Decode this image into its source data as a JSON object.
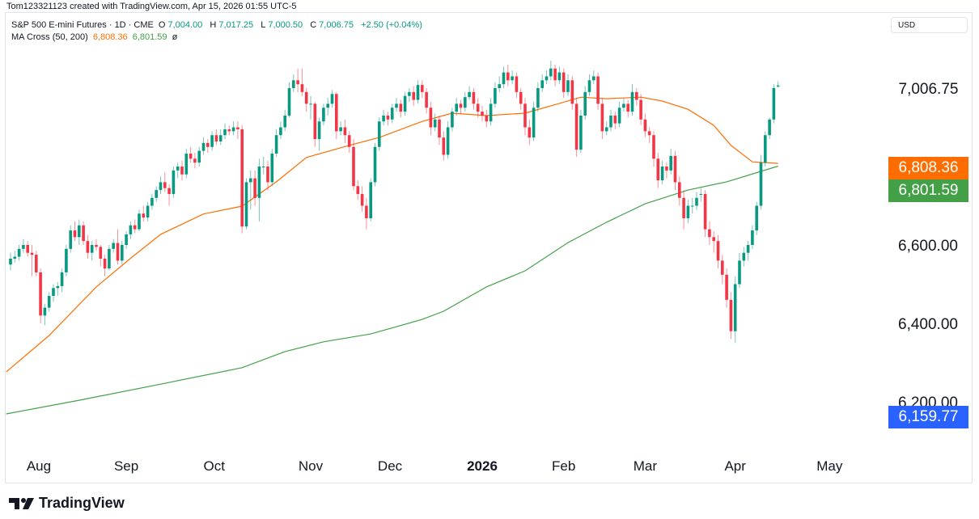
{
  "credit": "Tom123321123 created with TradingView.com, Apr 15, 2026 01:55 UTC-5",
  "legend": {
    "symbol": "S&P 500 E-mini Futures · 1D · CME",
    "open_label": "O",
    "open": "7,004.00",
    "high_label": "H",
    "high": "7,017.25",
    "low_label": "L",
    "low": "7,000.50",
    "close_label": "C",
    "close": "7,006.75",
    "change": "+2.50 (+0.04%)",
    "indicator": "MA Cross (50, 200)",
    "ma_fast": "6,808.36",
    "ma_slow": "6,801.59",
    "visibility_icon": "ø"
  },
  "currency": "USD",
  "price_labels": {
    "last": "7,006.75",
    "ma_fast": "6,808.36",
    "ma_slow": "6,801.59",
    "low_marker": "6,159.77"
  },
  "footer": {
    "brand": "TradingView"
  },
  "colors": {
    "up": "#089981",
    "down": "#F23645",
    "ma_fast": "#FF6D00",
    "ma_slow": "#43A047",
    "marker": "#2962FF"
  },
  "chart_data": {
    "type": "candlestick",
    "y_ticks": [
      "6,200.00",
      "6,400.00",
      "6,600.00"
    ],
    "y_tick_values": [
      6200,
      6400,
      6600
    ],
    "x_labels": [
      "Aug",
      "Sep",
      "Oct",
      "Nov",
      "Dec",
      "2026",
      "Feb",
      "Mar",
      "Apr",
      "May"
    ],
    "x_label_candle_index": [
      6.6,
      27,
      47.5,
      70,
      88.5,
      110,
      129,
      148,
      169,
      191
    ],
    "grid": false,
    "candles": [
      [
        6550,
        6580,
        6535,
        6565
      ],
      [
        6565,
        6585,
        6555,
        6570
      ],
      [
        6570,
        6600,
        6560,
        6590
      ],
      [
        6590,
        6615,
        6580,
        6600
      ],
      [
        6600,
        6610,
        6570,
        6580
      ],
      [
        6580,
        6600,
        6520,
        6575
      ],
      [
        6575,
        6585,
        6520,
        6530
      ],
      [
        6530,
        6540,
        6400,
        6420
      ],
      [
        6420,
        6450,
        6395,
        6440
      ],
      [
        6440,
        6480,
        6430,
        6470
      ],
      [
        6470,
        6500,
        6455,
        6490
      ],
      [
        6490,
        6505,
        6470,
        6495
      ],
      [
        6495,
        6540,
        6480,
        6530
      ],
      [
        6530,
        6600,
        6520,
        6590
      ],
      [
        6590,
        6650,
        6580,
        6637
      ],
      [
        6637,
        6660,
        6610,
        6620
      ],
      [
        6620,
        6665,
        6600,
        6650
      ],
      [
        6650,
        6660,
        6600,
        6610
      ],
      [
        6610,
        6625,
        6565,
        6580
      ],
      [
        6580,
        6610,
        6560,
        6600
      ],
      [
        6600,
        6615,
        6585,
        6595
      ],
      [
        6595,
        6600,
        6545,
        6565
      ],
      [
        6565,
        6575,
        6520,
        6540
      ],
      [
        6540,
        6600,
        6535,
        6590
      ],
      [
        6590,
        6615,
        6580,
        6605
      ],
      [
        6605,
        6640,
        6550,
        6560
      ],
      [
        6560,
        6610,
        6550,
        6600
      ],
      [
        6600,
        6635,
        6590,
        6627
      ],
      [
        6627,
        6660,
        6615,
        6650
      ],
      [
        6650,
        6665,
        6630,
        6640
      ],
      [
        6640,
        6690,
        6635,
        6680
      ],
      [
        6680,
        6700,
        6660,
        6670
      ],
      [
        6670,
        6710,
        6660,
        6700
      ],
      [
        6700,
        6730,
        6690,
        6720
      ],
      [
        6720,
        6750,
        6710,
        6740
      ],
      [
        6740,
        6775,
        6730,
        6760
      ],
      [
        6760,
        6785,
        6735,
        6745
      ],
      [
        6745,
        6755,
        6700,
        6730
      ],
      [
        6730,
        6800,
        6720,
        6790
      ],
      [
        6790,
        6810,
        6770,
        6800
      ],
      [
        6800,
        6815,
        6765,
        6780
      ],
      [
        6780,
        6845,
        6770,
        6833
      ],
      [
        6833,
        6850,
        6810,
        6820
      ],
      [
        6820,
        6835,
        6795,
        6810
      ],
      [
        6810,
        6850,
        6800,
        6840
      ],
      [
        6840,
        6875,
        6830,
        6860
      ],
      [
        6860,
        6870,
        6835,
        6850
      ],
      [
        6850,
        6890,
        6840,
        6880
      ],
      [
        6880,
        6895,
        6855,
        6864
      ],
      [
        6864,
        6895,
        6855,
        6880
      ],
      [
        6880,
        6910,
        6870,
        6895
      ],
      [
        6895,
        6905,
        6880,
        6890
      ],
      [
        6890,
        6915,
        6880,
        6900
      ],
      [
        6900,
        6915,
        6870,
        6895
      ],
      [
        6895,
        6905,
        6630,
        6647
      ],
      [
        6647,
        6770,
        6640,
        6760
      ],
      [
        6760,
        6790,
        6690,
        6770
      ],
      [
        6770,
        6790,
        6700,
        6720
      ],
      [
        6720,
        6820,
        6660,
        6800
      ],
      [
        6800,
        6825,
        6780,
        6800
      ],
      [
        6800,
        6815,
        6740,
        6760
      ],
      [
        6760,
        6845,
        6750,
        6833
      ],
      [
        6833,
        6895,
        6825,
        6880
      ],
      [
        6880,
        6915,
        6870,
        6900
      ],
      [
        6900,
        6945,
        6890,
        6930
      ],
      [
        6930,
        7015,
        6925,
        7000
      ],
      [
        7000,
        7035,
        6990,
        7020
      ],
      [
        7020,
        7050,
        6990,
        7010
      ],
      [
        7010,
        7050,
        6980,
        6990
      ],
      [
        6990,
        7000,
        6940,
        6960
      ],
      [
        6960,
        6980,
        6920,
        6960
      ],
      [
        6960,
        6965,
        6850,
        6870
      ],
      [
        6870,
        6925,
        6840,
        6915
      ],
      [
        6915,
        6960,
        6905,
        6950
      ],
      [
        6950,
        6975,
        6930,
        6960
      ],
      [
        6960,
        6995,
        6950,
        6985
      ],
      [
        6985,
        6990,
        6870,
        6890
      ],
      [
        6890,
        6915,
        6880,
        6900
      ],
      [
        6900,
        6920,
        6860,
        6880
      ],
      [
        6880,
        6890,
        6835,
        6850
      ],
      [
        6850,
        6870,
        6740,
        6750
      ],
      [
        6750,
        6765,
        6715,
        6730
      ],
      [
        6730,
        6750,
        6685,
        6700
      ],
      [
        6700,
        6720,
        6640,
        6668
      ],
      [
        6668,
        6770,
        6660,
        6760
      ],
      [
        6760,
        6860,
        6750,
        6850
      ],
      [
        6850,
        6925,
        6840,
        6915
      ],
      [
        6915,
        6945,
        6905,
        6930
      ],
      [
        6930,
        6940,
        6905,
        6920
      ],
      [
        6920,
        6960,
        6910,
        6950
      ],
      [
        6950,
        6975,
        6940,
        6960
      ],
      [
        6960,
        6970,
        6925,
        6940
      ],
      [
        6940,
        6990,
        6930,
        6980
      ],
      [
        6980,
        7000,
        6965,
        6990
      ],
      [
        6990,
        7005,
        6955,
        6970
      ],
      [
        6970,
        7020,
        6960,
        7008
      ],
      [
        7008,
        7020,
        6975,
        6990
      ],
      [
        6990,
        7000,
        6935,
        6950
      ],
      [
        6950,
        6965,
        6880,
        6900
      ],
      [
        6900,
        6935,
        6890,
        6920
      ],
      [
        6920,
        6930,
        6855,
        6874
      ],
      [
        6874,
        6890,
        6815,
        6830
      ],
      [
        6830,
        6915,
        6820,
        6900
      ],
      [
        6900,
        6950,
        6890,
        6940
      ],
      [
        6940,
        6975,
        6930,
        6960
      ],
      [
        6960,
        6970,
        6935,
        6950
      ],
      [
        6950,
        6990,
        6940,
        6977
      ],
      [
        6977,
        7005,
        6970,
        6990
      ],
      [
        6990,
        7000,
        6945,
        6960
      ],
      [
        6960,
        6975,
        6925,
        6940
      ],
      [
        6940,
        6955,
        6915,
        6930
      ],
      [
        6930,
        6945,
        6900,
        6915
      ],
      [
        6915,
        6975,
        6905,
        6960
      ],
      [
        6960,
        7015,
        6950,
        7000
      ],
      [
        7000,
        7030,
        6990,
        7010
      ],
      [
        7010,
        7055,
        7000,
        7040
      ],
      [
        7040,
        7060,
        7005,
        7020
      ],
      [
        7020,
        7045,
        7010,
        7030
      ],
      [
        7030,
        7040,
        6975,
        6990
      ],
      [
        6990,
        7000,
        6945,
        6960
      ],
      [
        6960,
        6975,
        6880,
        6900
      ],
      [
        6900,
        6920,
        6855,
        6874
      ],
      [
        6874,
        6965,
        6865,
        6950
      ],
      [
        6950,
        7015,
        6940,
        7000
      ],
      [
        7000,
        7035,
        6990,
        7020
      ],
      [
        7020,
        7045,
        7010,
        7030
      ],
      [
        7030,
        7070,
        7020,
        7050
      ],
      [
        7050,
        7060,
        7005,
        7020
      ],
      [
        7020,
        7055,
        7010,
        7040
      ],
      [
        7040,
        7050,
        6975,
        6990
      ],
      [
        6990,
        7035,
        6980,
        7020
      ],
      [
        7020,
        7030,
        6945,
        6960
      ],
      [
        6960,
        6975,
        6825,
        6843
      ],
      [
        6843,
        6945,
        6835,
        6930
      ],
      [
        6930,
        7005,
        6920,
        6990
      ],
      [
        6990,
        7035,
        6980,
        7020
      ],
      [
        7020,
        7045,
        7010,
        7030
      ],
      [
        7030,
        7040,
        6945,
        6960
      ],
      [
        6960,
        6975,
        6870,
        6890
      ],
      [
        6890,
        6915,
        6880,
        6900
      ],
      [
        6900,
        6945,
        6890,
        6930
      ],
      [
        6930,
        6940,
        6895,
        6910
      ],
      [
        6910,
        6965,
        6900,
        6950
      ],
      [
        6950,
        6975,
        6940,
        6960
      ],
      [
        6960,
        6970,
        6925,
        6940
      ],
      [
        6940,
        7010,
        6930,
        6990
      ],
      [
        6990,
        7000,
        6955,
        6970
      ],
      [
        6970,
        6985,
        6905,
        6920
      ],
      [
        6920,
        6935,
        6875,
        6890
      ],
      [
        6890,
        6900,
        6860,
        6880
      ],
      [
        6880,
        6890,
        6800,
        6820
      ],
      [
        6820,
        6835,
        6745,
        6765
      ],
      [
        6765,
        6815,
        6755,
        6800
      ],
      [
        6800,
        6810,
        6770,
        6790
      ],
      [
        6790,
        6845,
        6780,
        6827
      ],
      [
        6827,
        6840,
        6740,
        6760
      ],
      [
        6760,
        6775,
        6700,
        6720
      ],
      [
        6720,
        6740,
        6640,
        6668
      ],
      [
        6668,
        6715,
        6655,
        6700
      ],
      [
        6700,
        6720,
        6680,
        6700
      ],
      [
        6700,
        6735,
        6690,
        6720
      ],
      [
        6730,
        6745,
        6710,
        6730
      ],
      [
        6730,
        6740,
        6620,
        6640
      ],
      [
        6640,
        6660,
        6600,
        6620
      ],
      [
        6620,
        6635,
        6580,
        6610
      ],
      [
        6610,
        6625,
        6540,
        6560
      ],
      [
        6560,
        6575,
        6500,
        6524
      ],
      [
        6524,
        6540,
        6440,
        6460
      ],
      [
        6460,
        6480,
        6360,
        6380
      ],
      [
        6380,
        6520,
        6350,
        6500
      ],
      [
        6500,
        6580,
        6490,
        6560
      ],
      [
        6560,
        6595,
        6545,
        6580
      ],
      [
        6580,
        6610,
        6560,
        6600
      ],
      [
        6600,
        6650,
        6590,
        6637
      ],
      [
        6637,
        6710,
        6625,
        6700
      ],
      [
        6700,
        6830,
        6690,
        6810
      ],
      [
        6810,
        6890,
        6800,
        6880
      ],
      [
        6880,
        6925,
        6870,
        6920
      ],
      [
        6920,
        7010,
        6910,
        7000
      ],
      [
        7004,
        7017.25,
        7000.5,
        7006.75
      ]
    ],
    "ma50": [
      [
        -1,
        6276
      ],
      [
        9,
        6369
      ],
      [
        20,
        6493
      ],
      [
        28,
        6566
      ],
      [
        35,
        6627
      ],
      [
        45,
        6679
      ],
      [
        54,
        6699
      ],
      [
        62,
        6761
      ],
      [
        69,
        6823
      ],
      [
        79,
        6854
      ],
      [
        86,
        6874
      ],
      [
        96,
        6915
      ],
      [
        103,
        6936
      ],
      [
        111,
        6930
      ],
      [
        120,
        6936
      ],
      [
        128,
        6961
      ],
      [
        133,
        6977
      ],
      [
        139,
        6973
      ],
      [
        147,
        6977
      ],
      [
        152,
        6967
      ],
      [
        158,
        6946
      ],
      [
        164,
        6905
      ],
      [
        168,
        6854
      ],
      [
        173,
        6812
      ],
      [
        179,
        6808
      ]
    ],
    "ma200": [
      [
        -1,
        6169
      ],
      [
        16,
        6204
      ],
      [
        35,
        6245
      ],
      [
        54,
        6287
      ],
      [
        64,
        6328
      ],
      [
        73,
        6353
      ],
      [
        84,
        6373
      ],
      [
        96,
        6410
      ],
      [
        101,
        6431
      ],
      [
        111,
        6493
      ],
      [
        120,
        6534
      ],
      [
        130,
        6606
      ],
      [
        139,
        6658
      ],
      [
        148,
        6705
      ],
      [
        158,
        6740
      ],
      [
        167,
        6761
      ],
      [
        179,
        6801
      ]
    ]
  }
}
